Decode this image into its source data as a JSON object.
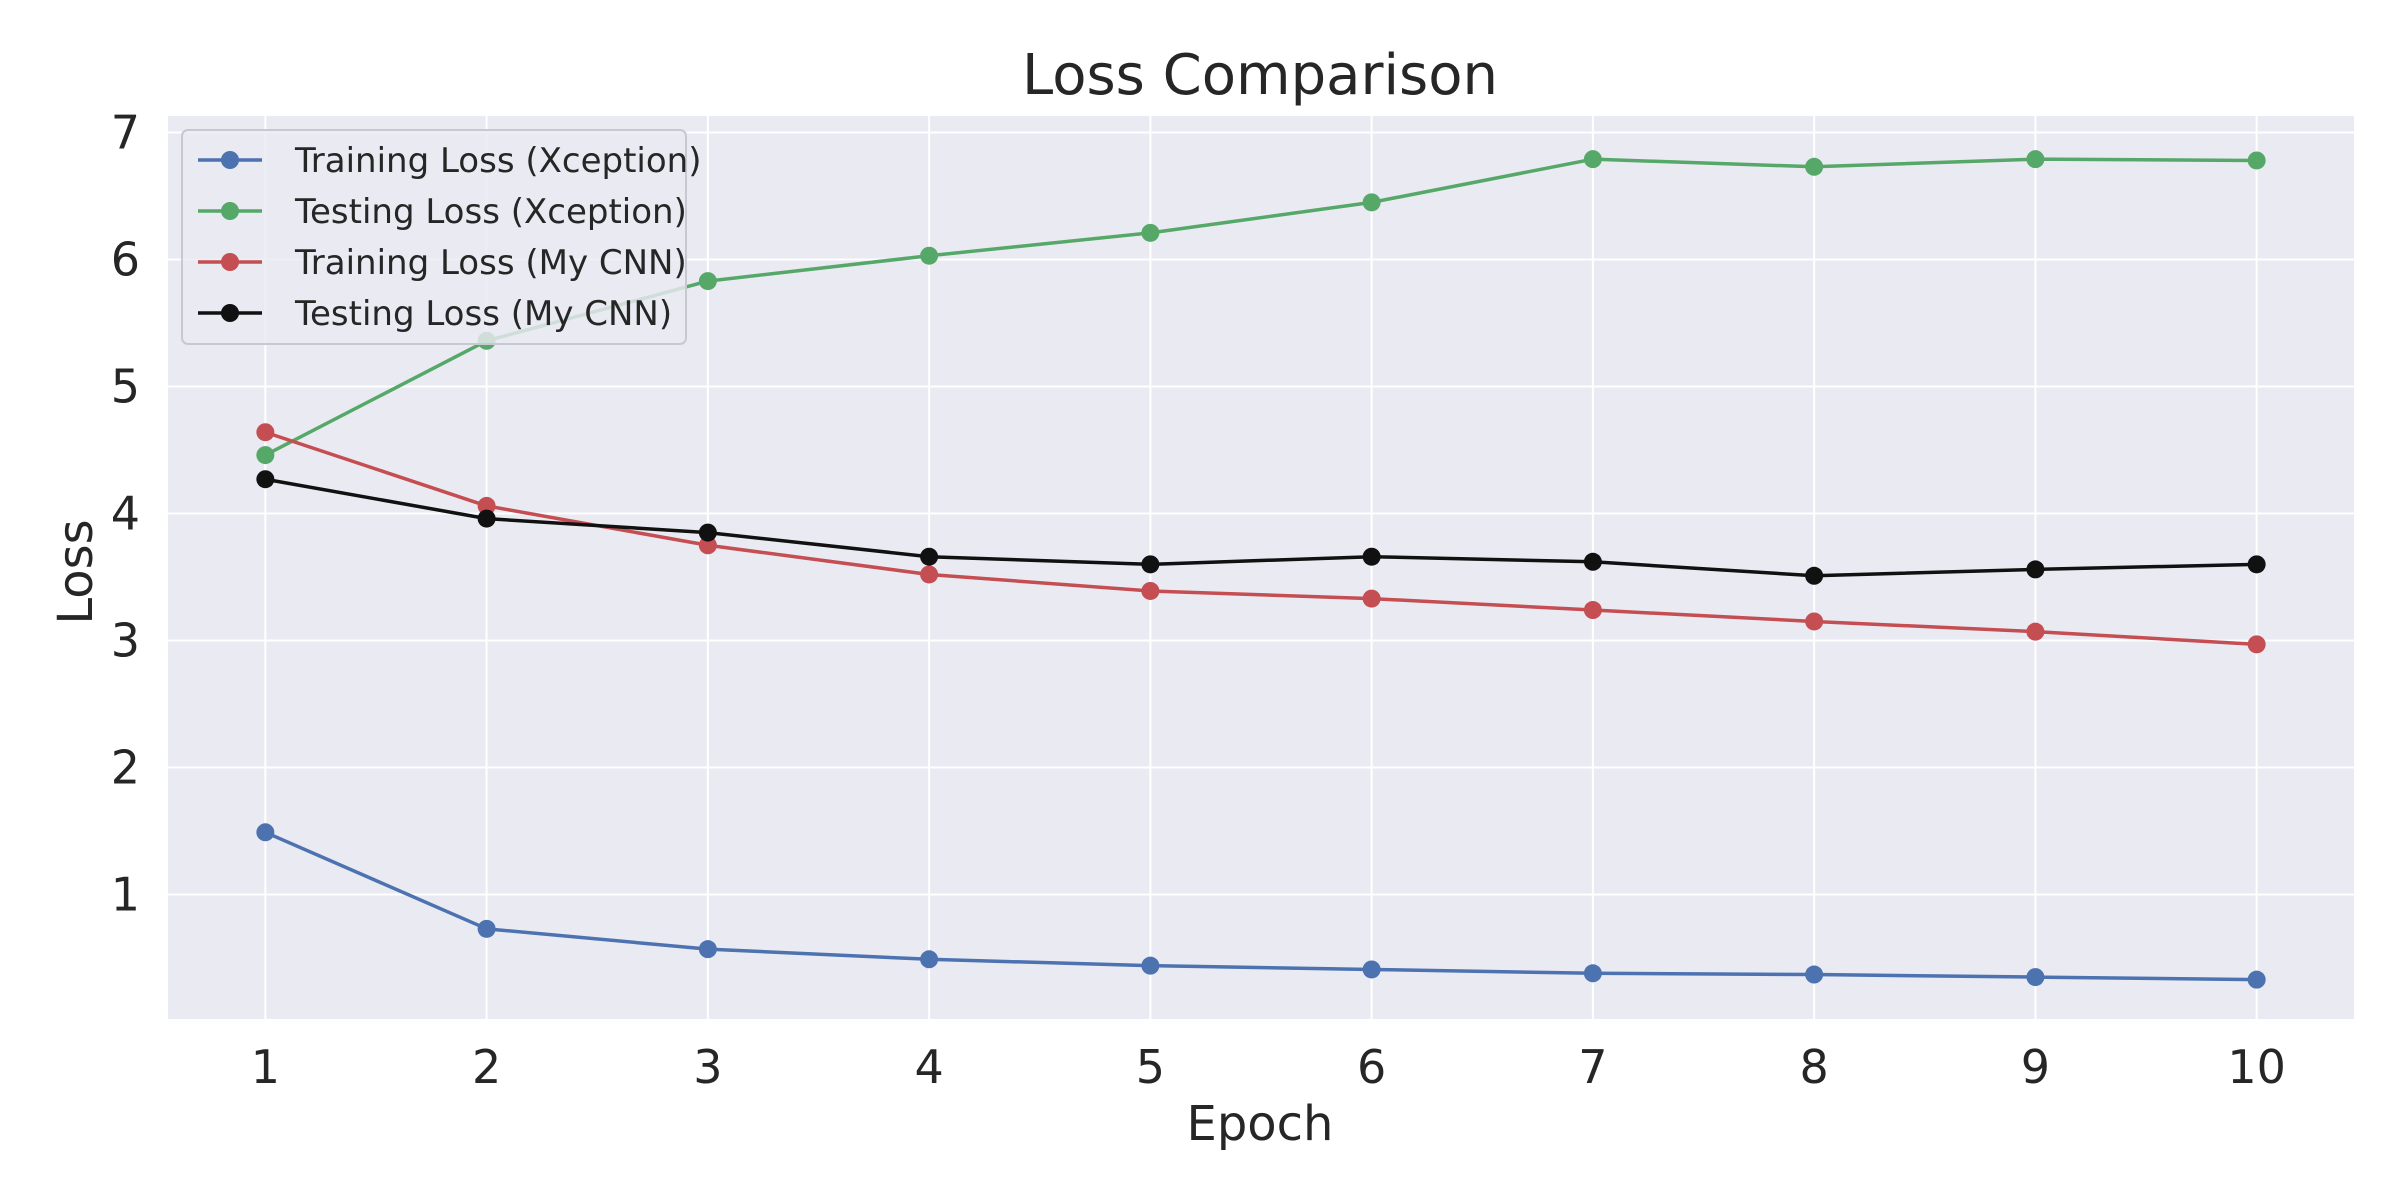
{
  "chart_data": {
    "type": "line",
    "title": "Loss Comparison",
    "xlabel": "Epoch",
    "ylabel": "Loss",
    "x": [
      1,
      2,
      3,
      4,
      5,
      6,
      7,
      8,
      9,
      10
    ],
    "xticks": [
      1,
      2,
      3,
      4,
      5,
      6,
      7,
      8,
      9,
      10
    ],
    "yticks": [
      1,
      2,
      3,
      4,
      5,
      6,
      7
    ],
    "xlim": [
      0.56,
      10.44
    ],
    "ylim": [
      0.02,
      7.13
    ],
    "grid": true,
    "legend_position": "top-left",
    "series": [
      {
        "name": "Training Loss (Xception)",
        "color": "#4C72B0",
        "values": [
          1.49,
          0.73,
          0.57,
          0.49,
          0.44,
          0.41,
          0.38,
          0.37,
          0.35,
          0.33
        ]
      },
      {
        "name": "Testing Loss (Xception)",
        "color": "#55A868",
        "values": [
          4.46,
          5.36,
          5.83,
          6.03,
          6.21,
          6.45,
          6.79,
          6.73,
          6.79,
          6.78
        ]
      },
      {
        "name": "Training Loss (My CNN)",
        "color": "#C44E52",
        "values": [
          4.64,
          4.06,
          3.75,
          3.52,
          3.39,
          3.33,
          3.24,
          3.15,
          3.07,
          2.97
        ]
      },
      {
        "name": "Testing Loss (My CNN)",
        "color": "#111111",
        "values": [
          4.27,
          3.96,
          3.85,
          3.66,
          3.6,
          3.66,
          3.62,
          3.51,
          3.56,
          3.6
        ]
      }
    ]
  }
}
